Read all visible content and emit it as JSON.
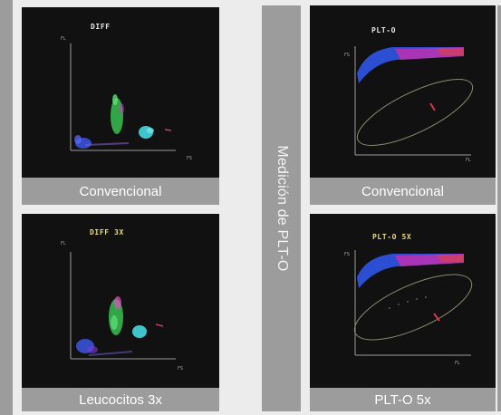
{
  "colors": {
    "bar": "#9d9c9c",
    "panel": "#111111",
    "caption_text": "#ffffff",
    "diff_title": "#e8e8e8",
    "highlight_title": "#e6dc82"
  },
  "left_group": {
    "panels": [
      {
        "title": "DIFF",
        "caption": "Convencional",
        "y_axis": "FL",
        "x_axis": "FS"
      },
      {
        "title": "DIFF 3X",
        "caption": "Leucocitos 3x",
        "y_axis": "FL",
        "x_axis": "FS"
      }
    ]
  },
  "right_group": {
    "side_label": "Medición de PLT-O",
    "panels": [
      {
        "title": "PLT-O",
        "caption": "Convencional",
        "y_axis": "FS",
        "x_axis": "FL"
      },
      {
        "title": "PLT-O 5X",
        "caption": "PLT-O 5x",
        "y_axis": "FS",
        "x_axis": "FL"
      }
    ]
  }
}
